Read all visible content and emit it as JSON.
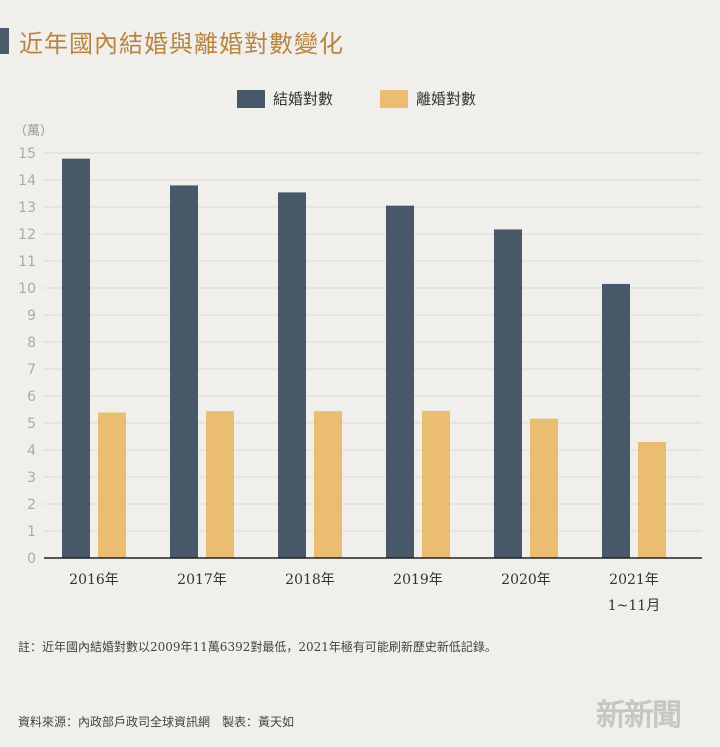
{
  "chart_data": {
    "type": "bar",
    "title": "近年國內結婚與離婚對數變化",
    "unit_label": "（萬）",
    "categories": [
      "2016年",
      "2017年",
      "2018年",
      "2019年",
      "2020年",
      "2021年"
    ],
    "category_sublabels": [
      "",
      "",
      "",
      "",
      "",
      "1~11月"
    ],
    "series": [
      {
        "name": "結婚對數",
        "color": "#475869",
        "values": [
          14.79,
          13.8,
          13.54,
          13.05,
          12.17,
          10.15
        ]
      },
      {
        "name": "離婚對數",
        "color": "#ebbd72",
        "values": [
          5.39,
          5.44,
          5.44,
          5.45,
          5.16,
          4.3
        ]
      }
    ],
    "ylim": [
      0,
      15
    ],
    "yticks": [
      0,
      1,
      2,
      3,
      4,
      5,
      6,
      7,
      8,
      9,
      10,
      11,
      12,
      13,
      14,
      15
    ],
    "grid": true,
    "legend": "top-center"
  },
  "note": "註：近年國內結婚對數以2009年11萬6392對最低，2021年極有可能刷新歷史新低記錄。",
  "source": "資料來源：內政部戶政司全球資訊網　製表：黃天如",
  "logo": "新新聞"
}
